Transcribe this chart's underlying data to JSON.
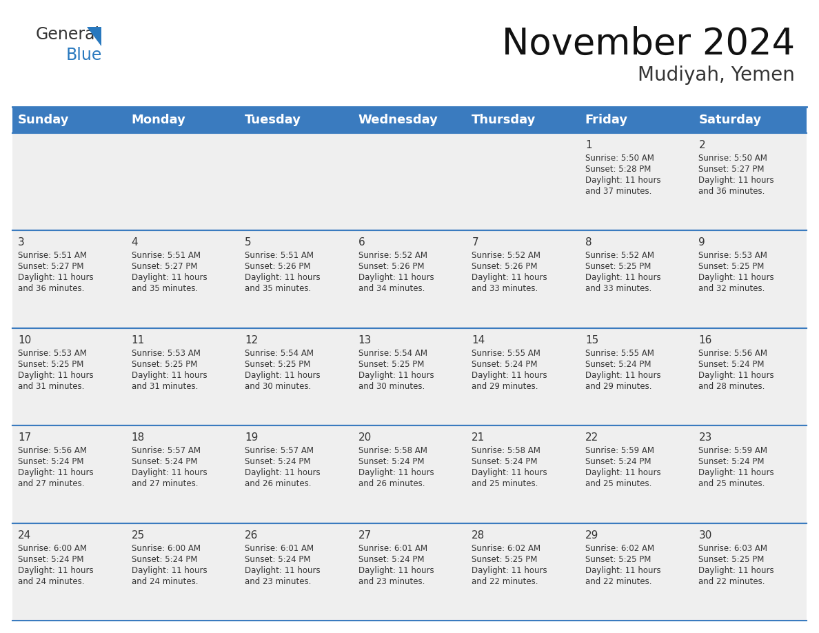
{
  "title": "November 2024",
  "subtitle": "Mudiyah, Yemen",
  "header_color": "#3a7bbf",
  "header_text_color": "#ffffff",
  "days_of_week": [
    "Sunday",
    "Monday",
    "Tuesday",
    "Wednesday",
    "Thursday",
    "Friday",
    "Saturday"
  ],
  "background_color": "#ffffff",
  "cell_bg": "#efefef",
  "cell_border_color": "#3a7bbf",
  "day_number_color": "#333333",
  "day_text_color": "#333333",
  "separator_color": "#3a7bbf",
  "calendar_data": [
    [
      "",
      "",
      "",
      "",
      "",
      "1\nSunrise: 5:50 AM\nSunset: 5:28 PM\nDaylight: 11 hours\nand 37 minutes.",
      "2\nSunrise: 5:50 AM\nSunset: 5:27 PM\nDaylight: 11 hours\nand 36 minutes."
    ],
    [
      "3\nSunrise: 5:51 AM\nSunset: 5:27 PM\nDaylight: 11 hours\nand 36 minutes.",
      "4\nSunrise: 5:51 AM\nSunset: 5:27 PM\nDaylight: 11 hours\nand 35 minutes.",
      "5\nSunrise: 5:51 AM\nSunset: 5:26 PM\nDaylight: 11 hours\nand 35 minutes.",
      "6\nSunrise: 5:52 AM\nSunset: 5:26 PM\nDaylight: 11 hours\nand 34 minutes.",
      "7\nSunrise: 5:52 AM\nSunset: 5:26 PM\nDaylight: 11 hours\nand 33 minutes.",
      "8\nSunrise: 5:52 AM\nSunset: 5:25 PM\nDaylight: 11 hours\nand 33 minutes.",
      "9\nSunrise: 5:53 AM\nSunset: 5:25 PM\nDaylight: 11 hours\nand 32 minutes."
    ],
    [
      "10\nSunrise: 5:53 AM\nSunset: 5:25 PM\nDaylight: 11 hours\nand 31 minutes.",
      "11\nSunrise: 5:53 AM\nSunset: 5:25 PM\nDaylight: 11 hours\nand 31 minutes.",
      "12\nSunrise: 5:54 AM\nSunset: 5:25 PM\nDaylight: 11 hours\nand 30 minutes.",
      "13\nSunrise: 5:54 AM\nSunset: 5:25 PM\nDaylight: 11 hours\nand 30 minutes.",
      "14\nSunrise: 5:55 AM\nSunset: 5:24 PM\nDaylight: 11 hours\nand 29 minutes.",
      "15\nSunrise: 5:55 AM\nSunset: 5:24 PM\nDaylight: 11 hours\nand 29 minutes.",
      "16\nSunrise: 5:56 AM\nSunset: 5:24 PM\nDaylight: 11 hours\nand 28 minutes."
    ],
    [
      "17\nSunrise: 5:56 AM\nSunset: 5:24 PM\nDaylight: 11 hours\nand 27 minutes.",
      "18\nSunrise: 5:57 AM\nSunset: 5:24 PM\nDaylight: 11 hours\nand 27 minutes.",
      "19\nSunrise: 5:57 AM\nSunset: 5:24 PM\nDaylight: 11 hours\nand 26 minutes.",
      "20\nSunrise: 5:58 AM\nSunset: 5:24 PM\nDaylight: 11 hours\nand 26 minutes.",
      "21\nSunrise: 5:58 AM\nSunset: 5:24 PM\nDaylight: 11 hours\nand 25 minutes.",
      "22\nSunrise: 5:59 AM\nSunset: 5:24 PM\nDaylight: 11 hours\nand 25 minutes.",
      "23\nSunrise: 5:59 AM\nSunset: 5:24 PM\nDaylight: 11 hours\nand 25 minutes."
    ],
    [
      "24\nSunrise: 6:00 AM\nSunset: 5:24 PM\nDaylight: 11 hours\nand 24 minutes.",
      "25\nSunrise: 6:00 AM\nSunset: 5:24 PM\nDaylight: 11 hours\nand 24 minutes.",
      "26\nSunrise: 6:01 AM\nSunset: 5:24 PM\nDaylight: 11 hours\nand 23 minutes.",
      "27\nSunrise: 6:01 AM\nSunset: 5:24 PM\nDaylight: 11 hours\nand 23 minutes.",
      "28\nSunrise: 6:02 AM\nSunset: 5:25 PM\nDaylight: 11 hours\nand 22 minutes.",
      "29\nSunrise: 6:02 AM\nSunset: 5:25 PM\nDaylight: 11 hours\nand 22 minutes.",
      "30\nSunrise: 6:03 AM\nSunset: 5:25 PM\nDaylight: 11 hours\nand 22 minutes."
    ]
  ],
  "logo_color_general": "#333333",
  "logo_color_blue": "#2878be",
  "logo_triangle_color": "#2878be",
  "title_fontsize": 38,
  "subtitle_fontsize": 20,
  "header_fontsize": 13,
  "day_num_fontsize": 11,
  "cell_text_fontsize": 8.5
}
